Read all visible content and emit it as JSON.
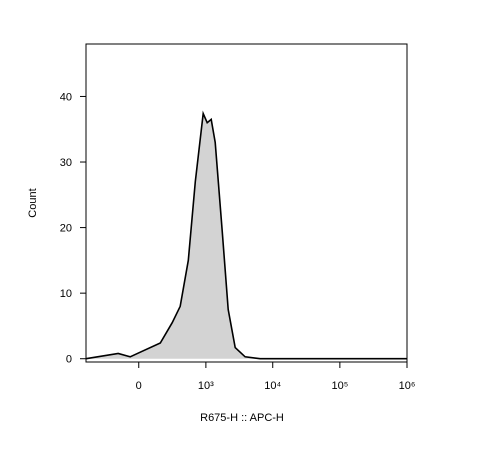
{
  "chart_data": {
    "type": "area",
    "x_label": "R675-H :: APC-H",
    "y_label": "Count",
    "x": [
      -600,
      -154,
      -60,
      10,
      163,
      286,
      394,
      534,
      687,
      909,
      1046,
      1202,
      1381,
      1761,
      2165,
      2753,
      3880,
      6480,
      10850,
      1000000
    ],
    "values": [
      0,
      0.8,
      0.3,
      1,
      2.4,
      5.5,
      8,
      15,
      27,
      37.4,
      36,
      36.5,
      33,
      19.5,
      7.5,
      1.7,
      0.3,
      0,
      0,
      0
    ],
    "color": "#d3d3d3",
    "line_color": "#000000",
    "x_scale": "biexponential",
    "xlim": [
      -600,
      1000000
    ],
    "ylim": [
      -0.5,
      48
    ],
    "xticks": [
      0,
      {
        "value": 1000,
        "label": "10³"
      },
      {
        "value": 10000,
        "label": "10⁴"
      },
      {
        "value": 100000,
        "label": "10⁵"
      },
      {
        "value": 1000000,
        "label": "10⁶"
      }
    ],
    "yticks": [
      0,
      10,
      20,
      30,
      40
    ]
  }
}
